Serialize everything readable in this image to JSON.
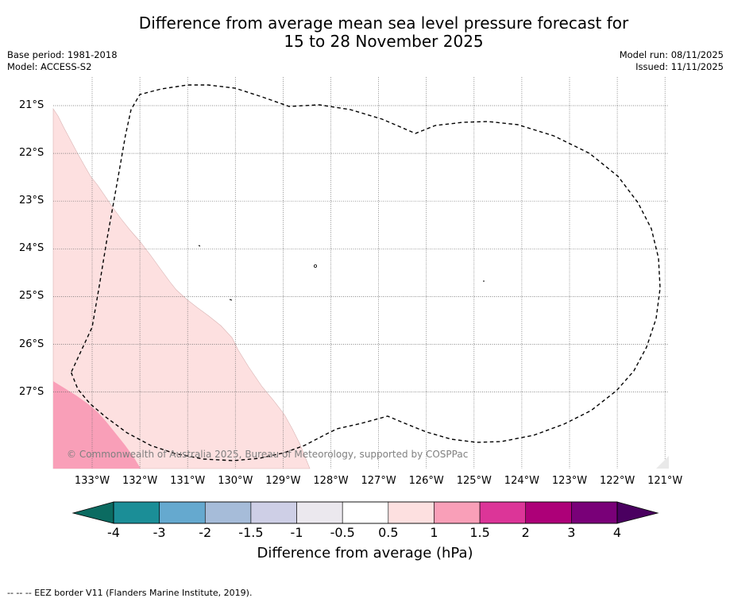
{
  "title": {
    "line1": "Difference from average mean sea level pressure forecast for",
    "line2": "15 to 28 November 2025"
  },
  "meta": {
    "base_period": "Base period: 1981-2018",
    "model": "Model: ACCESS-S2",
    "model_run": "Model run: 08/11/2025",
    "issued": "Issued: 11/11/2025"
  },
  "map": {
    "lat_labels": [
      "21°S",
      "22°S",
      "23°S",
      "24°S",
      "25°S",
      "26°S",
      "27°S"
    ],
    "lon_labels": [
      "133°W",
      "132°W",
      "131°W",
      "130°W",
      "129°W",
      "128°W",
      "127°W",
      "126°W",
      "125°W",
      "124°W",
      "123°W",
      "122°W",
      "121°W"
    ],
    "shaded_regions": [
      {
        "name": "anomaly-0.5-to-1",
        "range_hpa": [
          0.5,
          1
        ],
        "color": "#fde0e0"
      },
      {
        "name": "anomaly-1-to-1.5",
        "range_hpa": [
          1,
          1.5
        ],
        "color": "#f99fb8"
      }
    ],
    "border_style": "dashed",
    "credit": "© Commonwealth of Australia 2025, Bureau of Meteorology, supported by COSPPac"
  },
  "colorbar": {
    "label": "Difference from average (hPa)",
    "ticks": [
      "-4",
      "-3",
      "-2",
      "-1.5",
      "-1",
      "-0.5",
      "0.5",
      "1",
      "1.5",
      "2",
      "3",
      "4"
    ],
    "colors": [
      "#1b8e97",
      "#65a9cf",
      "#a6bcd9",
      "#cecfe6",
      "#ebe8ee",
      "#ffffff",
      "#fde0e0",
      "#f99fb8",
      "#dc3598",
      "#ad0078",
      "#790078"
    ],
    "extend_low_color": "#0b6b61",
    "extend_high_color": "#4a0060"
  },
  "footnote": "--  --  -- EEZ border V11 (Flanders Marine Institute, 2019)."
}
